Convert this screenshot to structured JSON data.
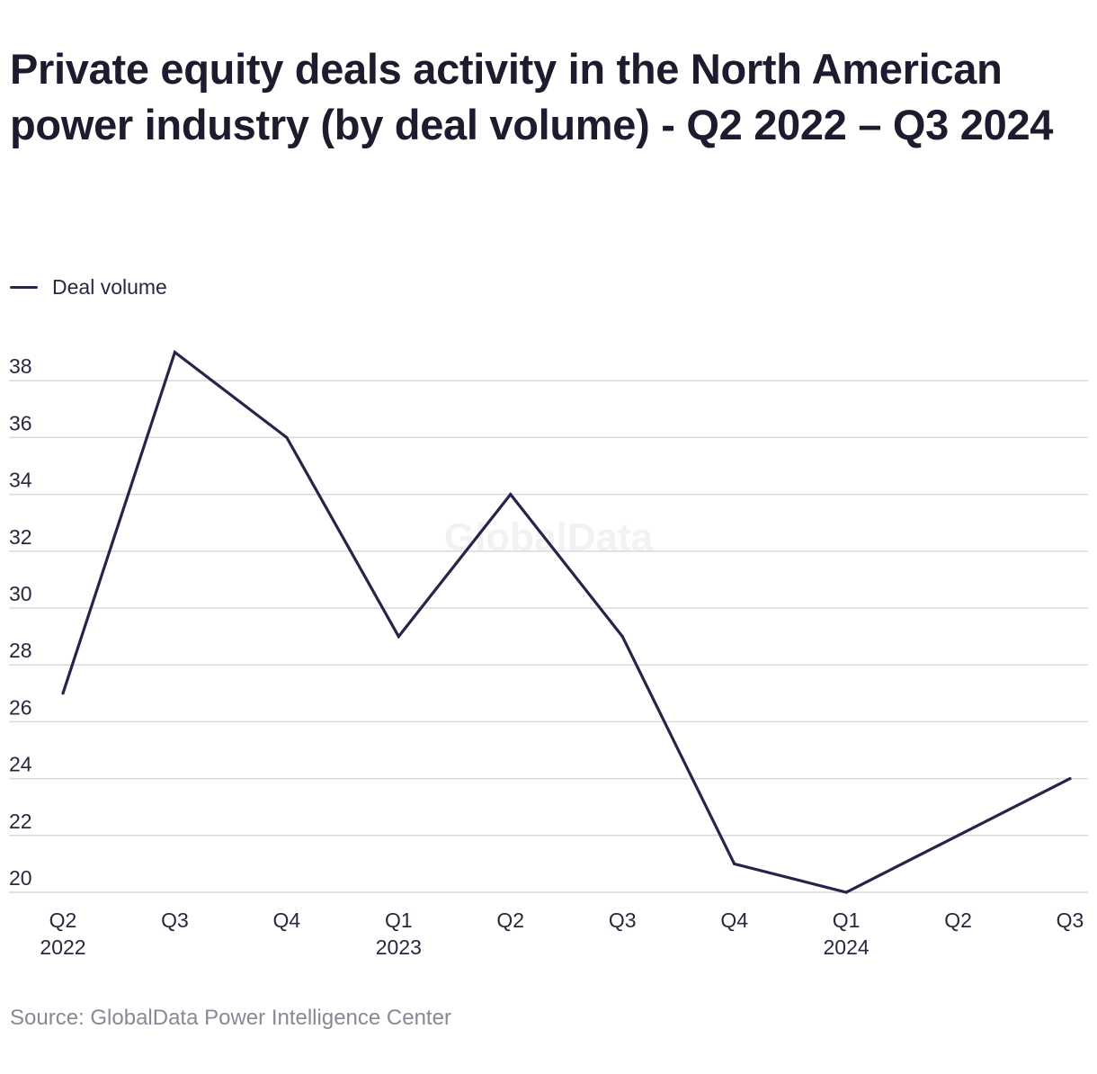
{
  "header": {
    "title": "Private equity deals activity in the North American power industry (by deal volume) - Q2 2022 – Q3 2024"
  },
  "legend": {
    "series_label": "Deal volume"
  },
  "footer": {
    "source": "Source: GlobalData Power Intelligence Center"
  },
  "watermark": "GlobalData",
  "colors": {
    "line": "#2e2149",
    "grid": "#d9d9dc",
    "tick": "#2b2640",
    "watermark": "#f2f2f4"
  },
  "chart_data": {
    "type": "line",
    "title": "Private equity deals activity in the North American power industry (by deal volume) - Q2 2022 – Q3 2024",
    "xlabel": "",
    "ylabel": "",
    "categories": [
      [
        "Q2",
        "2022"
      ],
      [
        "Q3",
        ""
      ],
      [
        "Q4",
        ""
      ],
      [
        "Q1",
        "2023"
      ],
      [
        "Q2",
        ""
      ],
      [
        "Q3",
        ""
      ],
      [
        "Q4",
        ""
      ],
      [
        "Q1",
        "2024"
      ],
      [
        "Q2",
        ""
      ],
      [
        "Q3",
        ""
      ]
    ],
    "series": [
      {
        "name": "Deal volume",
        "values": [
          27,
          39,
          36,
          29,
          34,
          29,
          21,
          20,
          22,
          24
        ]
      }
    ],
    "yticks": [
      20,
      22,
      24,
      26,
      28,
      30,
      32,
      34,
      36,
      38
    ],
    "ylim": [
      20,
      38.5
    ],
    "grid": true,
    "legend_position": "top-left"
  }
}
